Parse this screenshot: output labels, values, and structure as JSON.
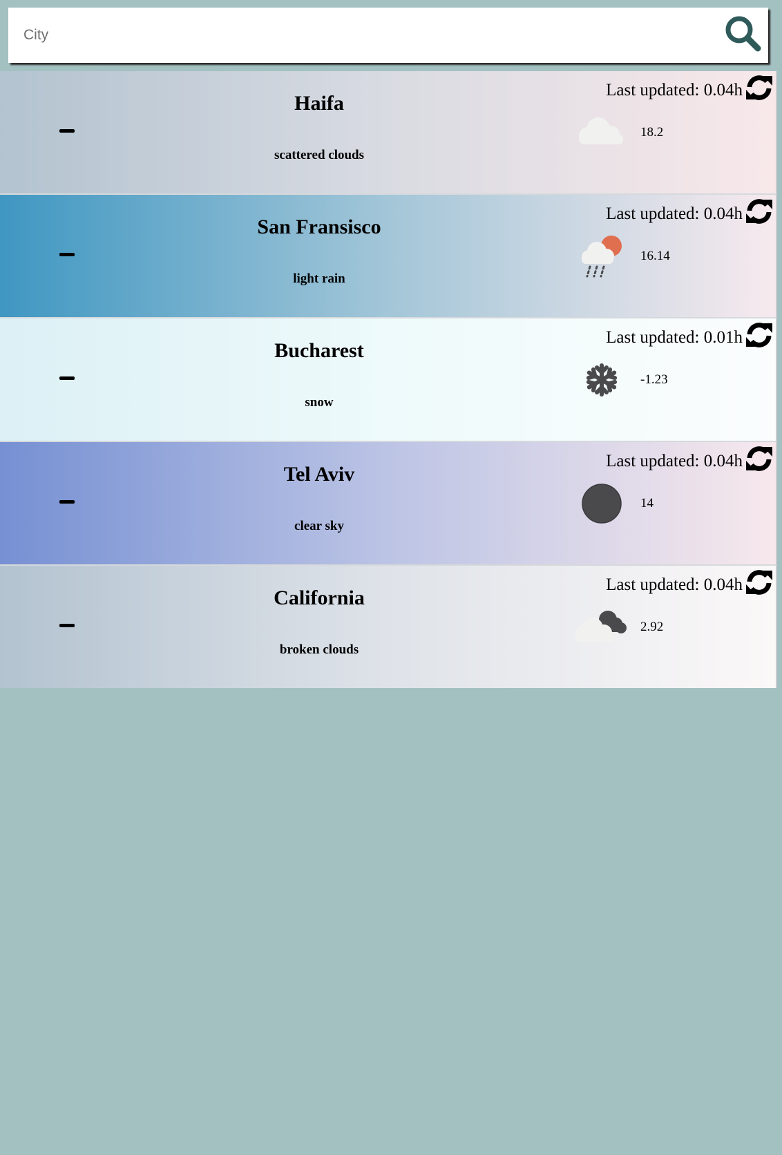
{
  "search": {
    "placeholder": "City",
    "value": ""
  },
  "cities": [
    {
      "name": "Haifa",
      "description": "scattered clouds",
      "last_updated": "Last updated: 0.04h",
      "temperature": "18.2",
      "icon": "cloud-icon",
      "gradient": [
        "#b3c3d0",
        "#d9dbe2",
        "#f8e8ea"
      ]
    },
    {
      "name": "San Fransisco",
      "description": "light rain",
      "last_updated": "Last updated: 0.04h",
      "temperature": "16.14",
      "icon": "rain-sun-icon",
      "gradient": [
        "#3f97c2",
        "#a3c6d8",
        "#f7eaee"
      ]
    },
    {
      "name": "Bucharest",
      "description": "snow",
      "last_updated": "Last updated: 0.01h",
      "temperature": "-1.23",
      "icon": "snowflake-icon",
      "gradient": [
        "#dcf0f5",
        "#eefafb",
        "#fbfdfd"
      ]
    },
    {
      "name": "Tel Aviv",
      "description": "clear sky",
      "last_updated": "Last updated: 0.04h",
      "temperature": "14",
      "icon": "moon-icon",
      "gradient": [
        "#7690d3",
        "#bcc4e5",
        "#f7e8ec"
      ]
    },
    {
      "name": "California",
      "description": "broken clouds",
      "last_updated": "Last updated: 0.04h",
      "temperature": "2.92",
      "icon": "broken-clouds-icon",
      "gradient": [
        "#b3c3d0",
        "#dfe3e9",
        "#fbf8f8"
      ]
    }
  ],
  "colors": {
    "background": "#a4c1c2",
    "search_icon": "#2f5a5a",
    "icon_dark": "#4a4a4c",
    "sun": "#e06f50"
  }
}
